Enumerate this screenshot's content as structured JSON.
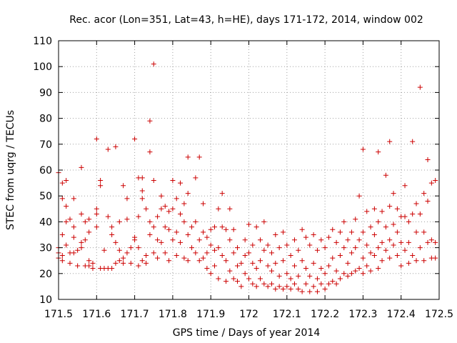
{
  "chart_data": {
    "type": "scatter",
    "title": "Rec. acor (Lon=351, Lat=43, h=HE), days 171-172, 2014, window 002",
    "xlabel": "GPS time / Days of year 2014",
    "ylabel": "STEC from uqrg / TECUs",
    "xlim": [
      171.5,
      172.5
    ],
    "ylim": [
      10,
      110
    ],
    "x_ticks": [
      "171.5",
      "171.6",
      "171.7",
      "171.8",
      "171.9",
      "172",
      "172.1",
      "172.2",
      "172.3",
      "172.4",
      "172.5"
    ],
    "y_ticks": [
      "10",
      "20",
      "30",
      "40",
      "50",
      "60",
      "70",
      "80",
      "90",
      "100",
      "110"
    ],
    "grid": true,
    "marker": "+",
    "marker_color": "#cc0000",
    "series": [
      {
        "points": [
          [
            171.5,
            59
          ],
          [
            171.5,
            30
          ],
          [
            171.5,
            28
          ],
          [
            171.5,
            26
          ],
          [
            171.51,
            55
          ],
          [
            171.51,
            49
          ],
          [
            171.51,
            35
          ],
          [
            171.51,
            27
          ],
          [
            171.51,
            25
          ],
          [
            171.52,
            56
          ],
          [
            171.52,
            46
          ],
          [
            171.52,
            40
          ],
          [
            171.52,
            31
          ],
          [
            171.53,
            41
          ],
          [
            171.53,
            28
          ],
          [
            171.53,
            24
          ],
          [
            171.54,
            49
          ],
          [
            171.54,
            38
          ],
          [
            171.54,
            34
          ],
          [
            171.54,
            28
          ],
          [
            171.55,
            29
          ],
          [
            171.55,
            23
          ],
          [
            171.56,
            61
          ],
          [
            171.56,
            43
          ],
          [
            171.56,
            32
          ],
          [
            171.56,
            30
          ],
          [
            171.57,
            40
          ],
          [
            171.57,
            33
          ],
          [
            171.57,
            23
          ],
          [
            171.58,
            41
          ],
          [
            171.58,
            36
          ],
          [
            171.58,
            25
          ],
          [
            171.58,
            23
          ],
          [
            171.59,
            24
          ],
          [
            171.59,
            22
          ],
          [
            171.6,
            72
          ],
          [
            171.6,
            45
          ],
          [
            171.6,
            43
          ],
          [
            171.6,
            38
          ],
          [
            171.61,
            56
          ],
          [
            171.61,
            54
          ],
          [
            171.61,
            22
          ],
          [
            171.62,
            29
          ],
          [
            171.62,
            22
          ],
          [
            171.63,
            68
          ],
          [
            171.63,
            42
          ],
          [
            171.63,
            22
          ],
          [
            171.64,
            38
          ],
          [
            171.64,
            35
          ],
          [
            171.64,
            22
          ],
          [
            171.65,
            69
          ],
          [
            171.65,
            32
          ],
          [
            171.65,
            24
          ],
          [
            171.66,
            40
          ],
          [
            171.66,
            29
          ],
          [
            171.66,
            25
          ],
          [
            171.67,
            54
          ],
          [
            171.67,
            26
          ],
          [
            171.67,
            24
          ],
          [
            171.68,
            49
          ],
          [
            171.68,
            41
          ],
          [
            171.68,
            28
          ],
          [
            171.69,
            30
          ],
          [
            171.69,
            24
          ],
          [
            171.7,
            72
          ],
          [
            171.7,
            34
          ],
          [
            171.7,
            33
          ],
          [
            171.71,
            57
          ],
          [
            171.71,
            42
          ],
          [
            171.71,
            30
          ],
          [
            171.71,
            23
          ],
          [
            171.72,
            57
          ],
          [
            171.72,
            52
          ],
          [
            171.72,
            49
          ],
          [
            171.72,
            25
          ],
          [
            171.73,
            45
          ],
          [
            171.73,
            27
          ],
          [
            171.73,
            24
          ],
          [
            171.74,
            79
          ],
          [
            171.74,
            67
          ],
          [
            171.74,
            40
          ],
          [
            171.74,
            35
          ],
          [
            171.75,
            101
          ],
          [
            171.75,
            56
          ],
          [
            171.75,
            38
          ],
          [
            171.75,
            28
          ],
          [
            171.76,
            42
          ],
          [
            171.76,
            33
          ],
          [
            171.76,
            26
          ],
          [
            171.77,
            50
          ],
          [
            171.77,
            45
          ],
          [
            171.77,
            32
          ],
          [
            171.78,
            46
          ],
          [
            171.78,
            38
          ],
          [
            171.78,
            28
          ],
          [
            171.79,
            44
          ],
          [
            171.79,
            37
          ],
          [
            171.79,
            25
          ],
          [
            171.8,
            56
          ],
          [
            171.8,
            45
          ],
          [
            171.8,
            33
          ],
          [
            171.81,
            49
          ],
          [
            171.81,
            36
          ],
          [
            171.81,
            27
          ],
          [
            171.82,
            55
          ],
          [
            171.82,
            43
          ],
          [
            171.82,
            32
          ],
          [
            171.83,
            47
          ],
          [
            171.83,
            40
          ],
          [
            171.83,
            26
          ],
          [
            171.84,
            65
          ],
          [
            171.84,
            51
          ],
          [
            171.84,
            35
          ],
          [
            171.84,
            25
          ],
          [
            171.85,
            38
          ],
          [
            171.85,
            30
          ],
          [
            171.86,
            57
          ],
          [
            171.86,
            40
          ],
          [
            171.86,
            28
          ],
          [
            171.87,
            65
          ],
          [
            171.87,
            33
          ],
          [
            171.87,
            25
          ],
          [
            171.88,
            47
          ],
          [
            171.88,
            36
          ],
          [
            171.88,
            26
          ],
          [
            171.89,
            34
          ],
          [
            171.89,
            28
          ],
          [
            171.89,
            22
          ],
          [
            171.9,
            37
          ],
          [
            171.9,
            31
          ],
          [
            171.9,
            20
          ],
          [
            171.91,
            38
          ],
          [
            171.91,
            29
          ],
          [
            171.91,
            23
          ],
          [
            171.92,
            45
          ],
          [
            171.92,
            30
          ],
          [
            171.92,
            18
          ],
          [
            171.93,
            51
          ],
          [
            171.93,
            38
          ],
          [
            171.93,
            27
          ],
          [
            171.94,
            37
          ],
          [
            171.94,
            25
          ],
          [
            171.94,
            17
          ],
          [
            171.95,
            45
          ],
          [
            171.95,
            33
          ],
          [
            171.95,
            21
          ],
          [
            171.96,
            37
          ],
          [
            171.96,
            28
          ],
          [
            171.96,
            18
          ],
          [
            171.97,
            30
          ],
          [
            171.97,
            23
          ],
          [
            171.97,
            17
          ],
          [
            171.98,
            24
          ],
          [
            171.98,
            15
          ],
          [
            171.99,
            33
          ],
          [
            171.99,
            27
          ],
          [
            171.99,
            20
          ],
          [
            172.0,
            39
          ],
          [
            172.0,
            28
          ],
          [
            172.0,
            18
          ],
          [
            172.01,
            31
          ],
          [
            172.01,
            24
          ],
          [
            172.01,
            16
          ],
          [
            172.02,
            38
          ],
          [
            172.02,
            22
          ],
          [
            172.02,
            15
          ],
          [
            172.03,
            33
          ],
          [
            172.03,
            25
          ],
          [
            172.03,
            18
          ],
          [
            172.04,
            40
          ],
          [
            172.04,
            29
          ],
          [
            172.04,
            16
          ],
          [
            172.05,
            31
          ],
          [
            172.05,
            23
          ],
          [
            172.05,
            15
          ],
          [
            172.06,
            28
          ],
          [
            172.06,
            21
          ],
          [
            172.06,
            16
          ],
          [
            172.07,
            35
          ],
          [
            172.07,
            24
          ],
          [
            172.07,
            14
          ],
          [
            172.08,
            30
          ],
          [
            172.08,
            19
          ],
          [
            172.08,
            15
          ],
          [
            172.09,
            36
          ],
          [
            172.09,
            25
          ],
          [
            172.09,
            14
          ],
          [
            172.1,
            31
          ],
          [
            172.1,
            20
          ],
          [
            172.1,
            15
          ],
          [
            172.11,
            27
          ],
          [
            172.11,
            18
          ],
          [
            172.11,
            14
          ],
          [
            172.12,
            33
          ],
          [
            172.12,
            23
          ],
          [
            172.12,
            16
          ],
          [
            172.13,
            29
          ],
          [
            172.13,
            19
          ],
          [
            172.13,
            14
          ],
          [
            172.14,
            37
          ],
          [
            172.14,
            25
          ],
          [
            172.14,
            13
          ],
          [
            172.15,
            34
          ],
          [
            172.15,
            22
          ],
          [
            172.15,
            16
          ],
          [
            172.16,
            31
          ],
          [
            172.16,
            19
          ],
          [
            172.16,
            13
          ],
          [
            172.17,
            35
          ],
          [
            172.17,
            24
          ],
          [
            172.17,
            15
          ],
          [
            172.18,
            29
          ],
          [
            172.18,
            18
          ],
          [
            172.18,
            13
          ],
          [
            172.19,
            33
          ],
          [
            172.19,
            22
          ],
          [
            172.19,
            16
          ],
          [
            172.2,
            30
          ],
          [
            172.2,
            20
          ],
          [
            172.2,
            14
          ],
          [
            172.21,
            34
          ],
          [
            172.21,
            23
          ],
          [
            172.21,
            16
          ],
          [
            172.22,
            37
          ],
          [
            172.22,
            26
          ],
          [
            172.22,
            17
          ],
          [
            172.23,
            32
          ],
          [
            172.23,
            21
          ],
          [
            172.23,
            16
          ],
          [
            172.24,
            36
          ],
          [
            172.24,
            27
          ],
          [
            172.24,
            18
          ],
          [
            172.25,
            40
          ],
          [
            172.25,
            30
          ],
          [
            172.25,
            20
          ],
          [
            172.26,
            33
          ],
          [
            172.26,
            24
          ],
          [
            172.26,
            19
          ],
          [
            172.27,
            36
          ],
          [
            172.27,
            28
          ],
          [
            172.27,
            20
          ],
          [
            172.28,
            41
          ],
          [
            172.28,
            30
          ],
          [
            172.28,
            21
          ],
          [
            172.29,
            50
          ],
          [
            172.29,
            33
          ],
          [
            172.29,
            22
          ],
          [
            172.3,
            68
          ],
          [
            172.3,
            36
          ],
          [
            172.3,
            26
          ],
          [
            172.3,
            20
          ],
          [
            172.31,
            44
          ],
          [
            172.31,
            31
          ],
          [
            172.31,
            23
          ],
          [
            172.32,
            38
          ],
          [
            172.32,
            28
          ],
          [
            172.32,
            21
          ],
          [
            172.33,
            45
          ],
          [
            172.33,
            35
          ],
          [
            172.33,
            27
          ],
          [
            172.34,
            67
          ],
          [
            172.34,
            40
          ],
          [
            172.34,
            30
          ],
          [
            172.34,
            22
          ],
          [
            172.35,
            44
          ],
          [
            172.35,
            32
          ],
          [
            172.35,
            25
          ],
          [
            172.36,
            58
          ],
          [
            172.36,
            38
          ],
          [
            172.36,
            29
          ],
          [
            172.37,
            71
          ],
          [
            172.37,
            46
          ],
          [
            172.37,
            33
          ],
          [
            172.37,
            26
          ],
          [
            172.38,
            51
          ],
          [
            172.38,
            39
          ],
          [
            172.38,
            31
          ],
          [
            172.39,
            45
          ],
          [
            172.39,
            36
          ],
          [
            172.39,
            27
          ],
          [
            172.4,
            42
          ],
          [
            172.4,
            32
          ],
          [
            172.4,
            23
          ],
          [
            172.41,
            54
          ],
          [
            172.41,
            42
          ],
          [
            172.41,
            29
          ],
          [
            172.42,
            40
          ],
          [
            172.42,
            32
          ],
          [
            172.42,
            24
          ],
          [
            172.43,
            71
          ],
          [
            172.43,
            43
          ],
          [
            172.43,
            27
          ],
          [
            172.44,
            47
          ],
          [
            172.44,
            36
          ],
          [
            172.44,
            25
          ],
          [
            172.45,
            92
          ],
          [
            172.45,
            43
          ],
          [
            172.45,
            30
          ],
          [
            172.46,
            51
          ],
          [
            172.46,
            36
          ],
          [
            172.46,
            25
          ],
          [
            172.47,
            64
          ],
          [
            172.47,
            48
          ],
          [
            172.47,
            32
          ],
          [
            172.48,
            55
          ],
          [
            172.48,
            33
          ],
          [
            172.48,
            26
          ],
          [
            172.49,
            56
          ],
          [
            172.49,
            32
          ],
          [
            172.49,
            26
          ]
        ]
      }
    ]
  }
}
